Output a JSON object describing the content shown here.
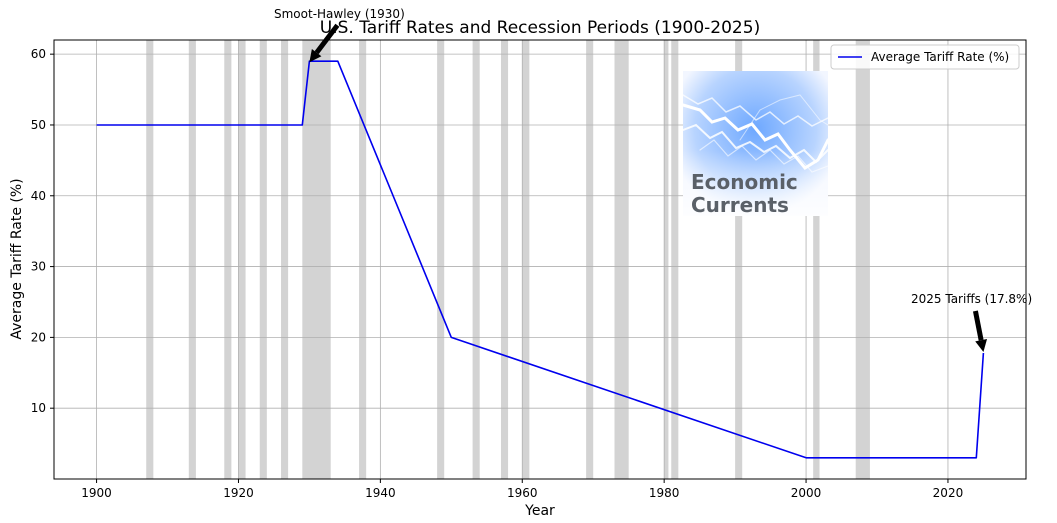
{
  "chart_data": {
    "type": "line",
    "title": "U.S. Tariff Rates and Recession Periods (1900-2025)",
    "xlabel": "Year",
    "ylabel": "Average Tariff Rate (%)",
    "xlim": [
      1894,
      2031
    ],
    "ylim": [
      0,
      62
    ],
    "xticks": [
      1900,
      1920,
      1940,
      1960,
      1980,
      2000,
      2020
    ],
    "yticks": [
      10,
      20,
      30,
      40,
      50,
      60
    ],
    "grid": true,
    "legend": {
      "position": "top-right"
    },
    "series": [
      {
        "name": "Average Tariff Rate (%)",
        "color": "#0000ee",
        "x": [
          1900,
          1929,
          1930,
          1934,
          1950,
          2000,
          2024,
          2025
        ],
        "y": [
          50,
          50,
          59,
          59,
          20,
          3,
          3,
          17.8
        ]
      }
    ],
    "recessions": [
      [
        1907,
        1908
      ],
      [
        1913,
        1914
      ],
      [
        1918,
        1919
      ],
      [
        1920,
        1921
      ],
      [
        1923,
        1924
      ],
      [
        1926,
        1927
      ],
      [
        1929,
        1933
      ],
      [
        1937,
        1938
      ],
      [
        1948,
        1949
      ],
      [
        1953,
        1954
      ],
      [
        1957,
        1958
      ],
      [
        1960,
        1961
      ],
      [
        1969,
        1970
      ],
      [
        1973,
        1975
      ],
      [
        1980,
        1980.6
      ],
      [
        1981,
        1982
      ],
      [
        1990,
        1991
      ],
      [
        2001,
        2001.9
      ],
      [
        2007,
        2009
      ]
    ],
    "recession_color": "#d3d3d3",
    "annotations": [
      {
        "text": "Smoot-Hawley (1930)",
        "x": 1930,
        "y": 59
      },
      {
        "text": "2025 Tariffs (17.8%)",
        "x": 2025,
        "y": 17.8
      }
    ]
  },
  "logo": {
    "text_line1": "Economic",
    "text_line2": "Currents",
    "icon": "wave-lines-icon"
  }
}
